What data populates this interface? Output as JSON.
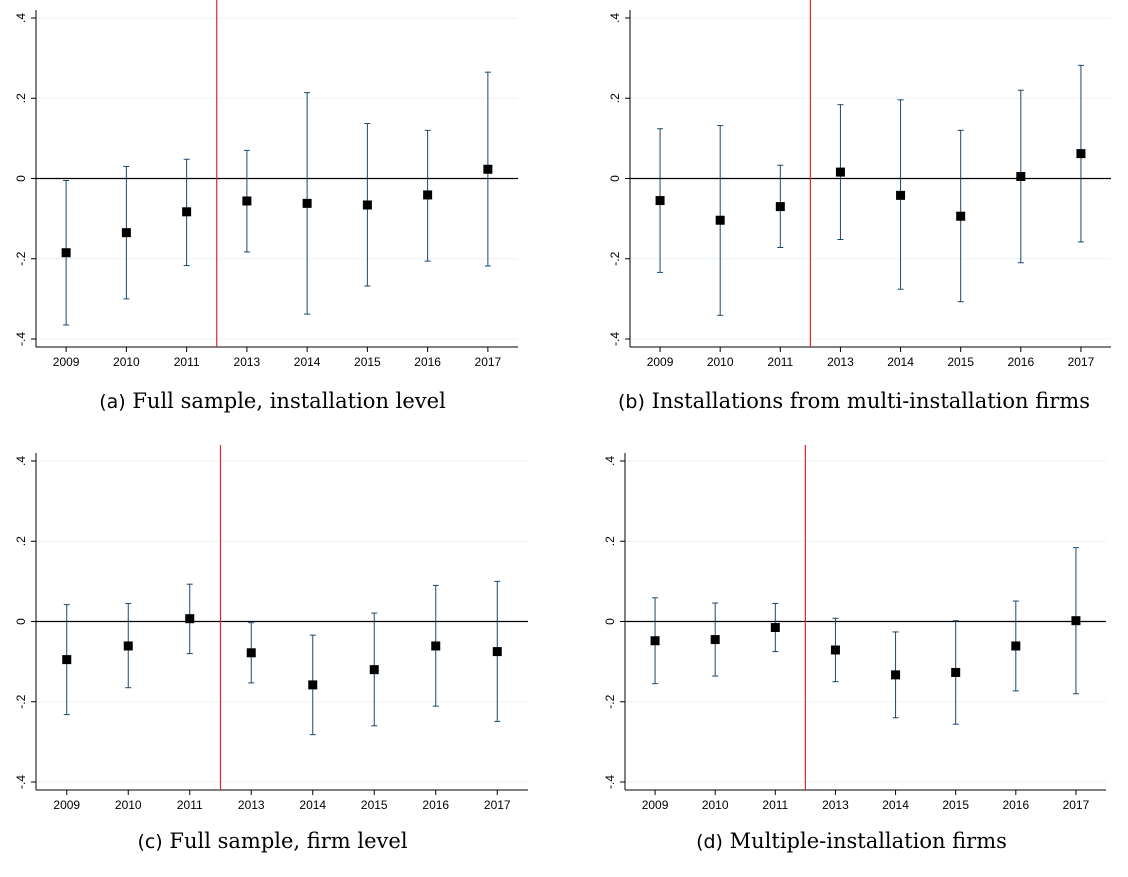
{
  "colors": {
    "ci": "#1a476f",
    "marker": "#000000",
    "ref_line": "#e32626",
    "zero_line": "#000000",
    "grid": "#eaf2f3"
  },
  "chart_data": [
    {
      "type": "scatter",
      "caption_letter": "(a)",
      "caption_text": "Full sample, installation level",
      "categories": [
        "2009",
        "2010",
        "2011",
        "2013",
        "2014",
        "2015",
        "2016",
        "2017"
      ],
      "values": [
        -0.185,
        -0.135,
        -0.083,
        -0.056,
        -0.062,
        -0.066,
        -0.041,
        0.023
      ],
      "ci_low": [
        -0.365,
        -0.3,
        -0.217,
        -0.183,
        -0.338,
        -0.268,
        -0.206,
        -0.218
      ],
      "ci_high": [
        -0.005,
        0.03,
        0.048,
        0.07,
        0.214,
        0.137,
        0.12,
        0.265
      ],
      "ylim": [
        -0.4,
        0.4
      ],
      "yticks": [
        {
          "v": -0.4,
          "label": "-.4"
        },
        {
          "v": -0.2,
          "label": "-.2"
        },
        {
          "v": 0,
          "label": "0"
        },
        {
          "v": 0.2,
          "label": ".2"
        },
        {
          "v": 0.4,
          "label": ".4"
        }
      ],
      "vline_between": [
        2,
        3
      ],
      "hline": 0,
      "grid": true
    },
    {
      "type": "scatter",
      "caption_letter": "(b)",
      "caption_text": "Installations from multi-installation firms",
      "categories": [
        "2009",
        "2010",
        "2011",
        "2013",
        "2014",
        "2015",
        "2016",
        "2017"
      ],
      "values": [
        -0.055,
        -0.104,
        -0.07,
        0.016,
        -0.042,
        -0.094,
        0.005,
        0.062
      ],
      "ci_low": [
        -0.234,
        -0.341,
        -0.172,
        -0.152,
        -0.276,
        -0.307,
        -0.21,
        -0.158
      ],
      "ci_high": [
        0.124,
        0.132,
        0.033,
        0.184,
        0.196,
        0.12,
        0.22,
        0.282
      ],
      "ylim": [
        -0.4,
        0.4
      ],
      "yticks": [
        {
          "v": -0.4,
          "label": "-.4"
        },
        {
          "v": -0.2,
          "label": "-.2"
        },
        {
          "v": 0,
          "label": "0"
        },
        {
          "v": 0.2,
          "label": ".2"
        },
        {
          "v": 0.4,
          "label": ".4"
        }
      ],
      "vline_between": [
        2,
        3
      ],
      "hline": 0,
      "grid": true
    },
    {
      "type": "scatter",
      "caption_letter": "(c)",
      "caption_text": "Full sample, firm level",
      "categories": [
        "2009",
        "2010",
        "2011",
        "2013",
        "2014",
        "2015",
        "2016",
        "2017"
      ],
      "values": [
        -0.095,
        -0.061,
        0.007,
        -0.078,
        -0.158,
        -0.12,
        -0.061,
        -0.075
      ],
      "ci_low": [
        -0.232,
        -0.165,
        -0.08,
        -0.153,
        -0.282,
        -0.26,
        -0.211,
        -0.249
      ],
      "ci_high": [
        0.042,
        0.045,
        0.093,
        -0.003,
        -0.034,
        0.021,
        0.09,
        0.1
      ],
      "ylim": [
        -0.4,
        0.4
      ],
      "yticks": [
        {
          "v": -0.4,
          "label": "-.4"
        },
        {
          "v": -0.2,
          "label": "-.2"
        },
        {
          "v": 0,
          "label": "0"
        },
        {
          "v": 0.2,
          "label": ".2"
        },
        {
          "v": 0.4,
          "label": ".4"
        }
      ],
      "vline_between": [
        2,
        3
      ],
      "hline": 0,
      "grid": true
    },
    {
      "type": "scatter",
      "caption_letter": "(d)",
      "caption_text": "Multiple-installation firms",
      "categories": [
        "2009",
        "2010",
        "2011",
        "2013",
        "2014",
        "2015",
        "2016",
        "2017"
      ],
      "values": [
        -0.048,
        -0.045,
        -0.015,
        -0.071,
        -0.133,
        -0.127,
        -0.061,
        0.002
      ],
      "ci_low": [
        -0.155,
        -0.136,
        -0.075,
        -0.15,
        -0.24,
        -0.256,
        -0.173,
        -0.18
      ],
      "ci_high": [
        0.059,
        0.046,
        0.045,
        0.008,
        -0.026,
        0.002,
        0.051,
        0.184
      ],
      "ylim": [
        -0.4,
        0.4
      ],
      "yticks": [
        {
          "v": -0.4,
          "label": "-.4"
        },
        {
          "v": -0.2,
          "label": "-.2"
        },
        {
          "v": 0,
          "label": "0"
        },
        {
          "v": 0.2,
          "label": ".2"
        },
        {
          "v": 0.4,
          "label": ".4"
        }
      ],
      "vline_between": [
        2,
        3
      ],
      "hline": 0,
      "grid": true
    }
  ]
}
